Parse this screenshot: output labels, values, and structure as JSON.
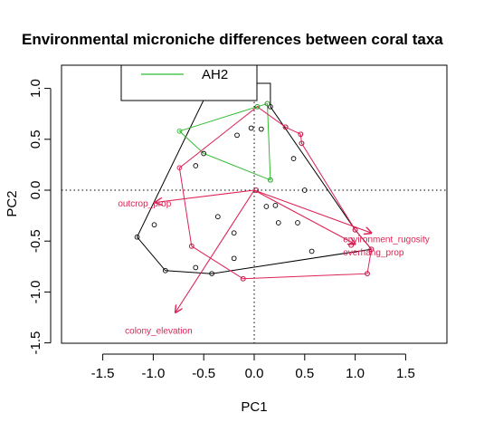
{
  "chart_data": {
    "type": "scatter",
    "title": "Environmental microniche differences between coral taxa",
    "xlabel": "PC1",
    "ylabel": "PC2",
    "xlim": [
      -1.5,
      1.5
    ],
    "ylim": [
      -1.5,
      1.0
    ],
    "x_ticks": [
      -1.5,
      -1.0,
      -0.5,
      0.0,
      0.5,
      1.0,
      1.5
    ],
    "y_ticks": [
      -1.5,
      -1.0,
      -0.5,
      0.0,
      0.5,
      1.0
    ],
    "x_tick_labels": [
      "-1.5",
      "-1.0",
      "-0.5",
      "0.0",
      "0.5",
      "1.0",
      "1.5"
    ],
    "y_tick_labels": [
      "-1.5",
      "-1.0",
      "-0.5",
      "0.0",
      "0.5",
      "1.0"
    ],
    "reference_lines": {
      "x": 0,
      "y": 0,
      "style": "dotted"
    },
    "legend": {
      "placement": "top-left",
      "entries": [
        {
          "label": "AH2",
          "color": "#33bb33"
        }
      ]
    },
    "points": [
      [
        0.03,
        0.82
      ],
      [
        0.13,
        0.85
      ],
      [
        0.16,
        0.82
      ],
      [
        -0.03,
        0.61
      ],
      [
        0.07,
        0.6
      ],
      [
        -0.17,
        0.54
      ],
      [
        -0.5,
        0.36
      ],
      [
        -0.58,
        0.24
      ],
      [
        0.39,
        0.31
      ],
      [
        0.47,
        0.46
      ],
      [
        0.31,
        0.62
      ],
      [
        0.46,
        0.55
      ],
      [
        0.16,
        0.1
      ],
      [
        0.02,
        0.0
      ],
      [
        0.5,
        0.0
      ],
      [
        0.21,
        -0.15
      ],
      [
        0.12,
        -0.16
      ],
      [
        0.24,
        -0.32
      ],
      [
        0.43,
        -0.32
      ],
      [
        -0.36,
        -0.26
      ],
      [
        -0.2,
        -0.42
      ],
      [
        -0.99,
        -0.34
      ],
      [
        -1.16,
        -0.46
      ],
      [
        -0.62,
        -0.55
      ],
      [
        0.57,
        -0.6
      ],
      [
        -0.2,
        -0.67
      ],
      [
        0.96,
        -0.54
      ],
      [
        1.0,
        -0.39
      ],
      [
        1.16,
        -0.58
      ],
      [
        -0.58,
        -0.76
      ],
      [
        -0.88,
        -0.79
      ],
      [
        -0.42,
        -0.82
      ],
      [
        -0.11,
        -0.87
      ],
      [
        1.12,
        -0.82
      ]
    ],
    "hulls": [
      {
        "color": "#000000",
        "vertices": [
          [
            -1.16,
            -0.46
          ],
          [
            -0.42,
            1.05
          ],
          [
            0.16,
            1.05
          ],
          [
            0.16,
            0.82
          ],
          [
            1.0,
            -0.39
          ],
          [
            1.16,
            -0.58
          ],
          [
            -0.42,
            -0.82
          ],
          [
            -0.88,
            -0.79
          ]
        ]
      },
      {
        "color": "#33bb33",
        "vertices": [
          [
            0.03,
            0.82
          ],
          [
            0.13,
            0.85
          ],
          [
            0.16,
            0.1
          ],
          [
            -0.5,
            0.36
          ],
          [
            -0.74,
            0.58
          ]
        ]
      },
      {
        "color": "#dd2255",
        "vertices": [
          [
            0.03,
            0.82
          ],
          [
            0.31,
            0.62
          ],
          [
            0.46,
            0.55
          ],
          [
            0.47,
            0.46
          ],
          [
            1.0,
            -0.39
          ],
          [
            1.16,
            -0.58
          ],
          [
            1.12,
            -0.82
          ],
          [
            -0.11,
            -0.87
          ],
          [
            -0.62,
            -0.55
          ],
          [
            -0.74,
            0.22
          ]
        ]
      }
    ],
    "series_colors": {
      "AH2": "#33bb33"
    },
    "colored_points": [
      {
        "color": "#33bb33",
        "points": [
          [
            0.03,
            0.82
          ],
          [
            0.13,
            0.85
          ],
          [
            0.16,
            0.1
          ],
          [
            -0.74,
            0.58
          ]
        ]
      },
      {
        "color": "#dd2255",
        "points": [
          [
            0.31,
            0.62
          ],
          [
            0.46,
            0.55
          ],
          [
            0.47,
            0.46
          ],
          [
            -0.74,
            0.22
          ],
          [
            0.02,
            0.0
          ],
          [
            1.0,
            -0.39
          ],
          [
            0.96,
            -0.54
          ],
          [
            1.16,
            -0.58
          ],
          [
            -0.62,
            -0.55
          ],
          [
            1.12,
            -0.82
          ],
          [
            -0.11,
            -0.87
          ]
        ]
      }
    ],
    "loading_arrows": {
      "color": "#dd2255",
      "origin": [
        0,
        0
      ],
      "arrows": [
        {
          "name": "outcrop_prop",
          "end": [
            -0.98,
            -0.12
          ],
          "label_at": [
            -1.35,
            -0.16
          ]
        },
        {
          "name": "environment_rugosity",
          "end": [
            1.16,
            -0.42
          ],
          "label_at": [
            0.88,
            -0.51
          ]
        },
        {
          "name": "overhang_prop",
          "end": [
            1.0,
            -0.53
          ],
          "label_at": [
            0.88,
            -0.64
          ]
        },
        {
          "name": "colony_elevation",
          "end": [
            -0.78,
            -1.2
          ],
          "label_at": [
            -1.28,
            -1.41
          ]
        }
      ]
    }
  }
}
